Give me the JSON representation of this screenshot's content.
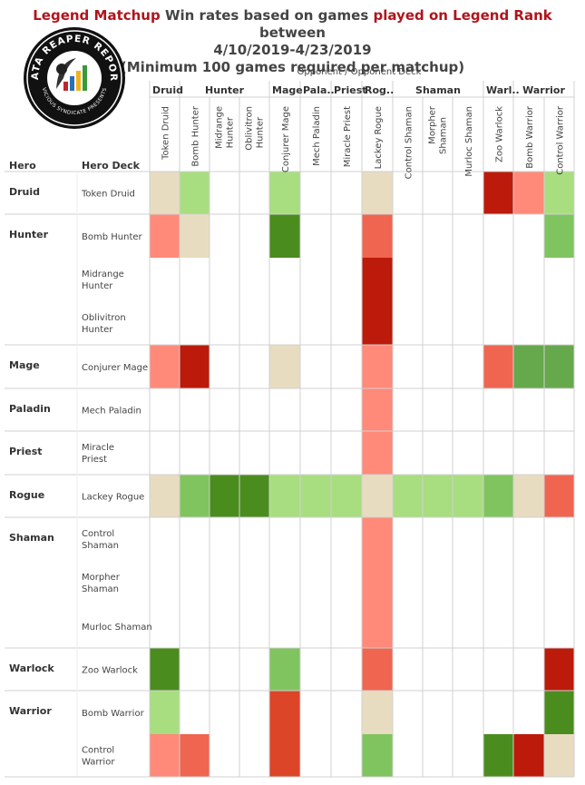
{
  "title": {
    "part1": "Legend Matchup",
    "part2": " Win rates based on games ",
    "part3": "played on Legend Rank",
    "part4": "  between",
    "line2": "4/10/2019-4/23/2019",
    "line3": "(Minimum 100 games required per matchup)"
  },
  "logo": {
    "text_top": "DATA REAPER REPORT",
    "text_bottom": "VICIOUS SYNDICATE PRESENTS"
  },
  "header": {
    "opponent_label": "Opponent  /  Opponent Deck",
    "hero_label": "Hero",
    "hero_deck_label": "Hero Deck"
  },
  "colors": {
    "even": "#e8dcc0",
    "light_green": "#a8de80",
    "mid_green": "#80c460",
    "dark_green": "#4b8c1e",
    "green2": "#66a84c",
    "light_red": "#ff8a7a",
    "mid_red": "#f06550",
    "red2": "#dc4528",
    "dark_red": "#bc1a0a"
  },
  "chart_data": {
    "type": "heatmap",
    "title": "Legend Matchup Win rates based on games played on Legend Rank between 4/10/2019-4/23/2019",
    "subtitle": "(Minimum 100 games required per matchup)",
    "x_classes": [
      {
        "name": "Druid",
        "span": 1
      },
      {
        "name": "Hunter",
        "span": 3
      },
      {
        "name": "Mage",
        "span": 1
      },
      {
        "name": "Pala..",
        "span": 1
      },
      {
        "name": "Priest",
        "span": 1
      },
      {
        "name": "Rog..",
        "span": 1
      },
      {
        "name": "Shaman",
        "span": 3
      },
      {
        "name": "Warl..",
        "span": 1
      },
      {
        "name": "Warrior",
        "span": 2
      }
    ],
    "x_decks": [
      "Token Druid",
      "Bomb Hunter",
      "Midrange Hunter",
      "Oblivitron Hunter",
      "Conjurer Mage",
      "Mech Paladin",
      "Miracle Priest",
      "Lackey Rogue",
      "Control Shaman",
      "Morpher Shaman",
      "Murloc Shaman",
      "Zoo Warlock",
      "Bomb Warrior",
      "Control Warrior"
    ],
    "y_heroes": [
      {
        "name": "Druid",
        "decks": [
          "Token Druid"
        ]
      },
      {
        "name": "Hunter",
        "decks": [
          "Bomb Hunter",
          "Midrange Hunter",
          "Oblivitron Hunter"
        ]
      },
      {
        "name": "Mage",
        "decks": [
          "Conjurer Mage"
        ]
      },
      {
        "name": "Paladin",
        "decks": [
          "Mech Paladin"
        ]
      },
      {
        "name": "Priest",
        "decks": [
          "Miracle Priest"
        ]
      },
      {
        "name": "Rogue",
        "decks": [
          "Lackey Rogue"
        ]
      },
      {
        "name": "Shaman",
        "decks": [
          "Control Shaman",
          "Morpher Shaman",
          "Murloc Shaman"
        ]
      },
      {
        "name": "Warlock",
        "decks": [
          "Zoo Warlock"
        ]
      },
      {
        "name": "Warrior",
        "decks": [
          "Bomb Warrior",
          "Control Warrior"
        ]
      }
    ],
    "cells": [
      [
        "even",
        "light_green",
        null,
        null,
        "light_green",
        null,
        null,
        "even",
        null,
        null,
        null,
        "dark_red",
        "light_red",
        "light_green"
      ],
      [
        "light_red",
        "even",
        null,
        null,
        "dark_green",
        null,
        null,
        "mid_red",
        null,
        null,
        null,
        null,
        null,
        "mid_green"
      ],
      [
        null,
        null,
        null,
        null,
        null,
        null,
        null,
        "dark_red",
        null,
        null,
        null,
        null,
        null,
        null
      ],
      [
        null,
        null,
        null,
        null,
        null,
        null,
        null,
        "dark_red",
        null,
        null,
        null,
        null,
        null,
        null
      ],
      [
        "light_red",
        "dark_red",
        null,
        null,
        "even",
        null,
        null,
        "light_red",
        null,
        null,
        null,
        "mid_red",
        "green2",
        "green2"
      ],
      [
        null,
        null,
        null,
        null,
        null,
        null,
        null,
        "light_red",
        null,
        null,
        null,
        null,
        null,
        null
      ],
      [
        null,
        null,
        null,
        null,
        null,
        null,
        null,
        "light_red",
        null,
        null,
        null,
        null,
        null,
        null
      ],
      [
        "even",
        "mid_green",
        "dark_green",
        "dark_green",
        "light_green",
        "light_green",
        "light_green",
        "even",
        "light_green",
        "light_green",
        "light_green",
        "mid_green",
        "even",
        "mid_red"
      ],
      [
        null,
        null,
        null,
        null,
        null,
        null,
        null,
        "light_red",
        null,
        null,
        null,
        null,
        null,
        null
      ],
      [
        null,
        null,
        null,
        null,
        null,
        null,
        null,
        "light_red",
        null,
        null,
        null,
        null,
        null,
        null
      ],
      [
        null,
        null,
        null,
        null,
        null,
        null,
        null,
        "light_red",
        null,
        null,
        null,
        null,
        null,
        null
      ],
      [
        "dark_green",
        null,
        null,
        null,
        "mid_green",
        null,
        null,
        "mid_red",
        null,
        null,
        null,
        null,
        null,
        "dark_red"
      ],
      [
        "light_green",
        null,
        null,
        null,
        "red2",
        null,
        null,
        "even",
        null,
        null,
        null,
        null,
        null,
        "dark_green"
      ],
      [
        "light_red",
        "mid_red",
        null,
        null,
        "red2",
        null,
        null,
        "mid_green",
        null,
        null,
        null,
        "dark_green",
        "dark_red",
        "even"
      ]
    ]
  }
}
